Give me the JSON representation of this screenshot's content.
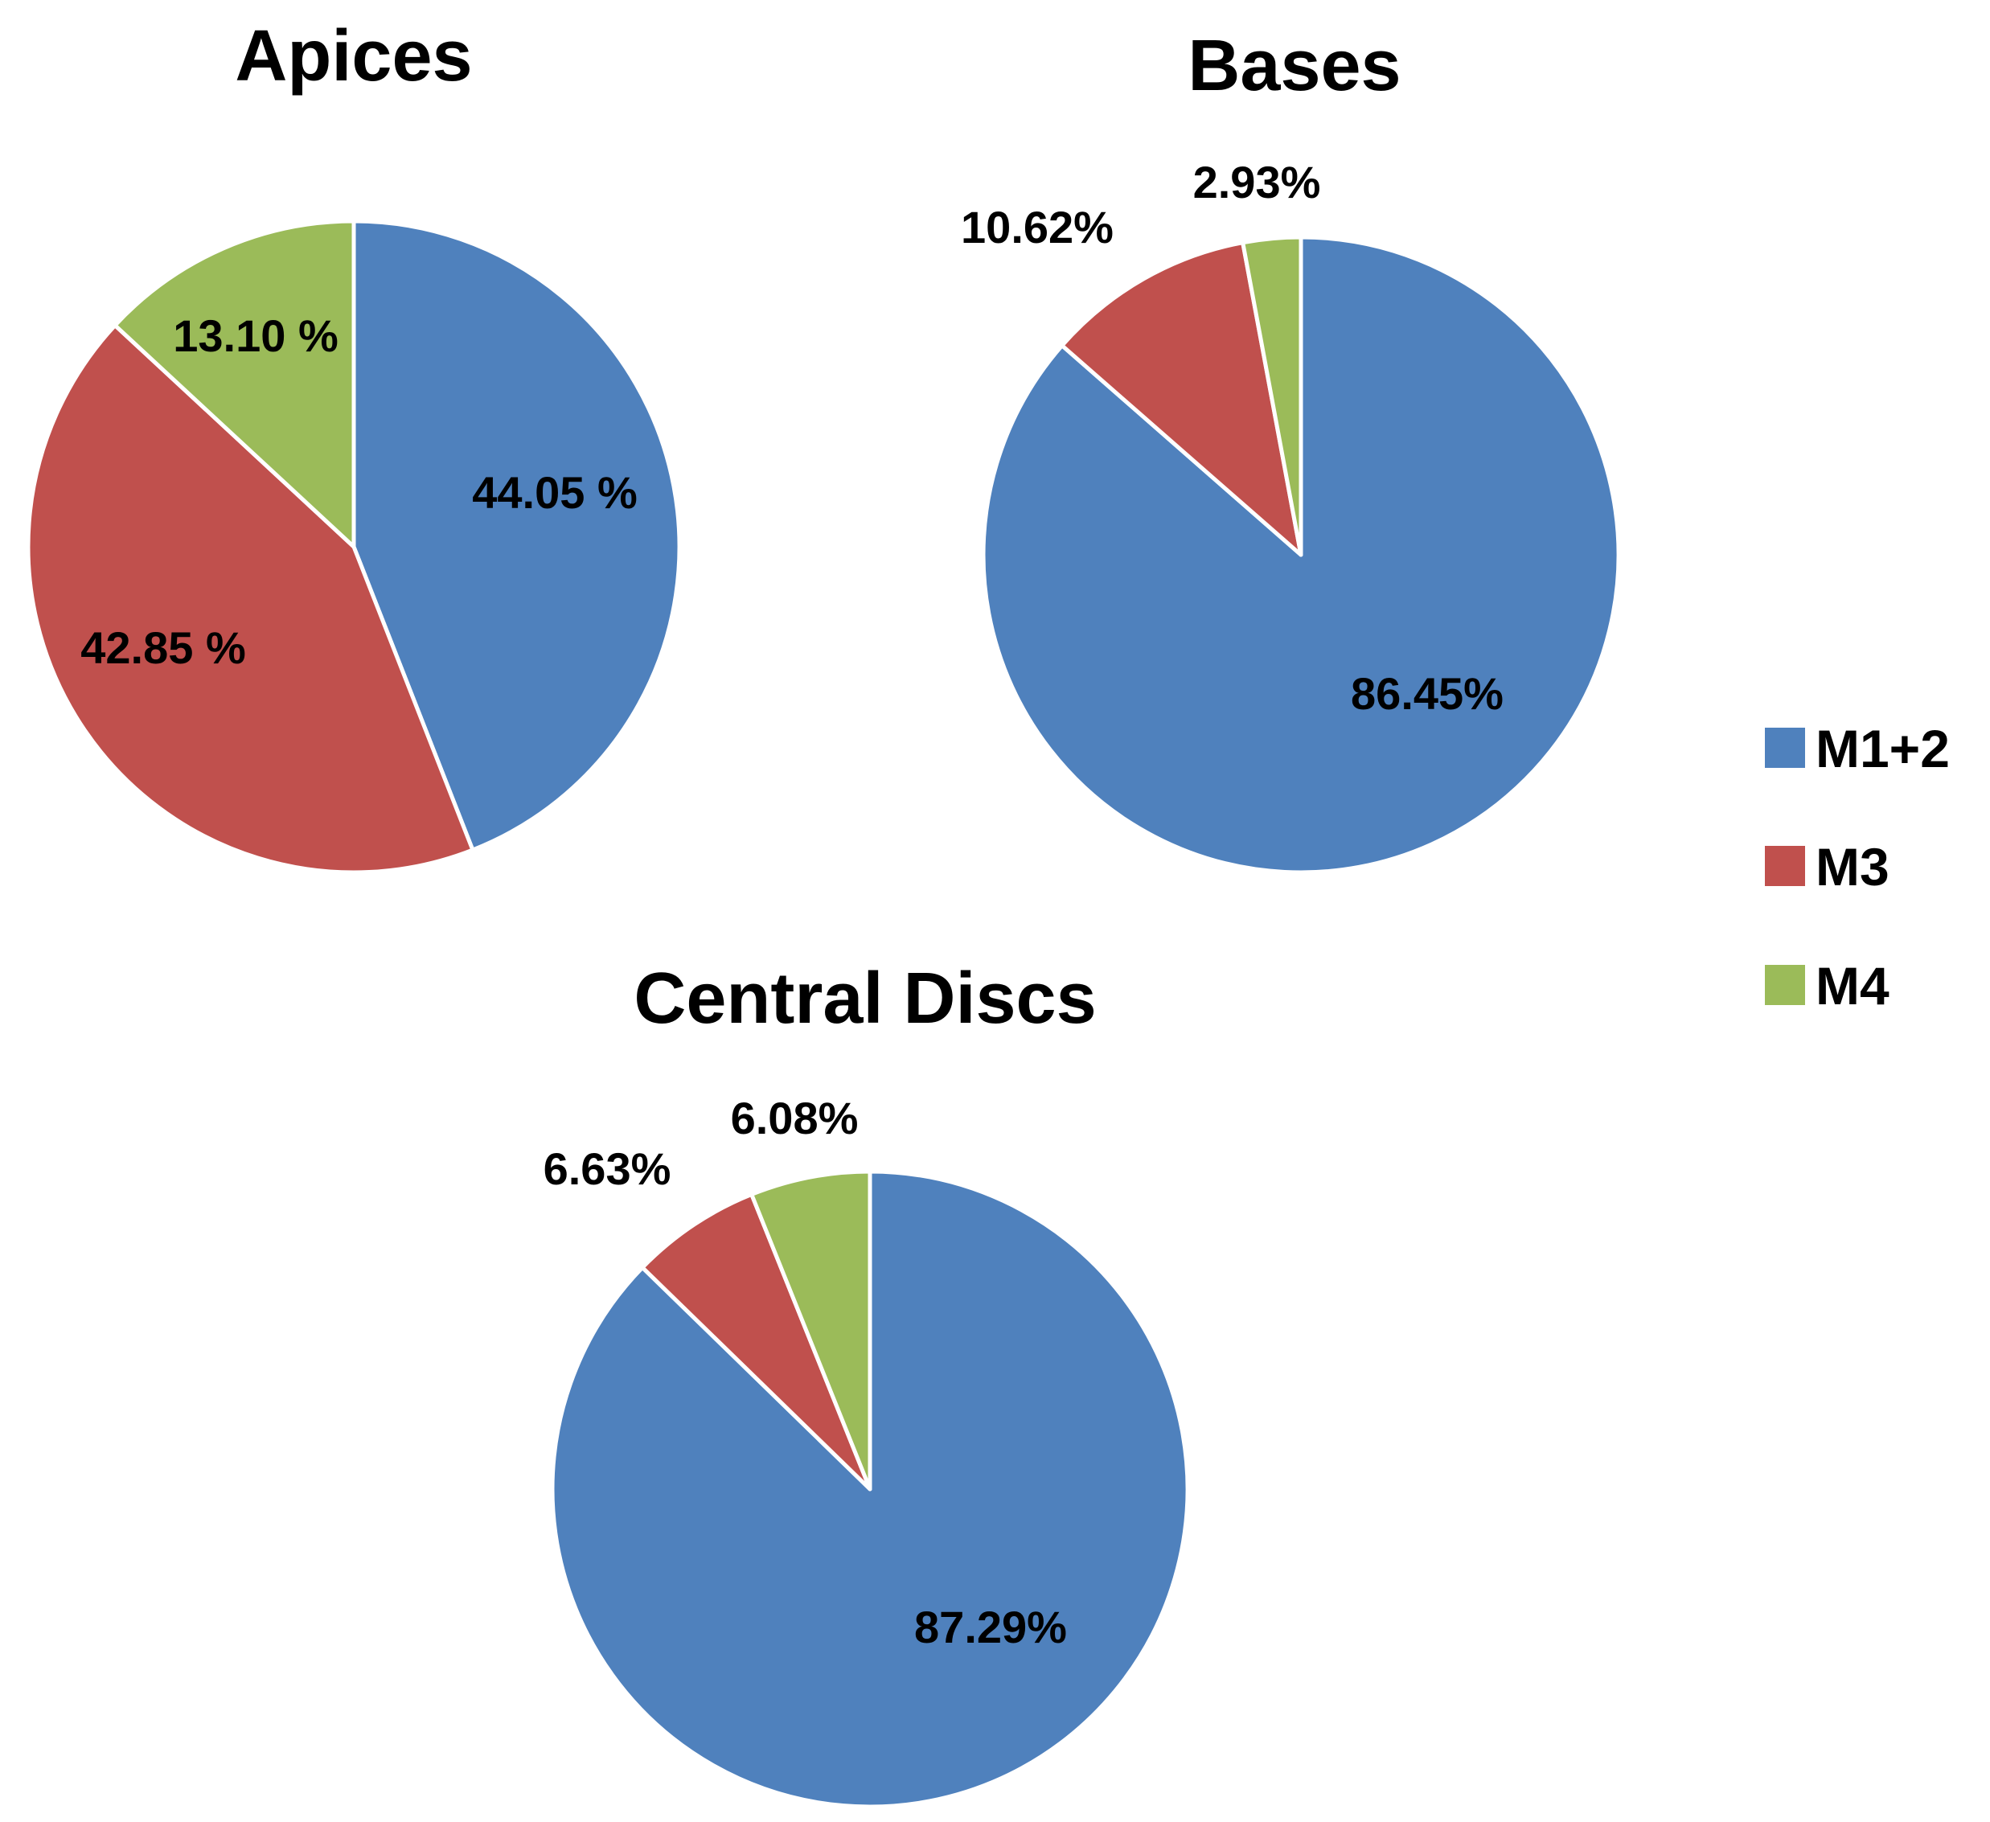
{
  "colors": {
    "M1+2": "#4F81BD",
    "M3": "#C0504D",
    "M4": "#9BBB59"
  },
  "legend": {
    "items": [
      {
        "label": "M1+2",
        "color": "#4F81BD"
      },
      {
        "label": "M3",
        "color": "#C0504D"
      },
      {
        "label": "M4",
        "color": "#9BBB59"
      }
    ]
  },
  "chart_data": [
    {
      "type": "pie",
      "title": "Apices",
      "categories": [
        "M1+2",
        "M3",
        "M4"
      ],
      "values": [
        44.05,
        42.85,
        13.1
      ],
      "labels": [
        "44.05 %",
        "42.85 %",
        "13.10 %"
      ]
    },
    {
      "type": "pie",
      "title": "Bases",
      "categories": [
        "M1+2",
        "M3",
        "M4"
      ],
      "values": [
        86.45,
        10.62,
        2.93
      ],
      "labels": [
        "86.45%",
        "10.62%",
        "2.93%"
      ]
    },
    {
      "type": "pie",
      "title": "Central Discs",
      "categories": [
        "M1+2",
        "M3",
        "M4"
      ],
      "values": [
        87.29,
        6.63,
        6.08
      ],
      "labels": [
        "87.29%",
        "6.63%",
        "6.08%"
      ]
    }
  ]
}
